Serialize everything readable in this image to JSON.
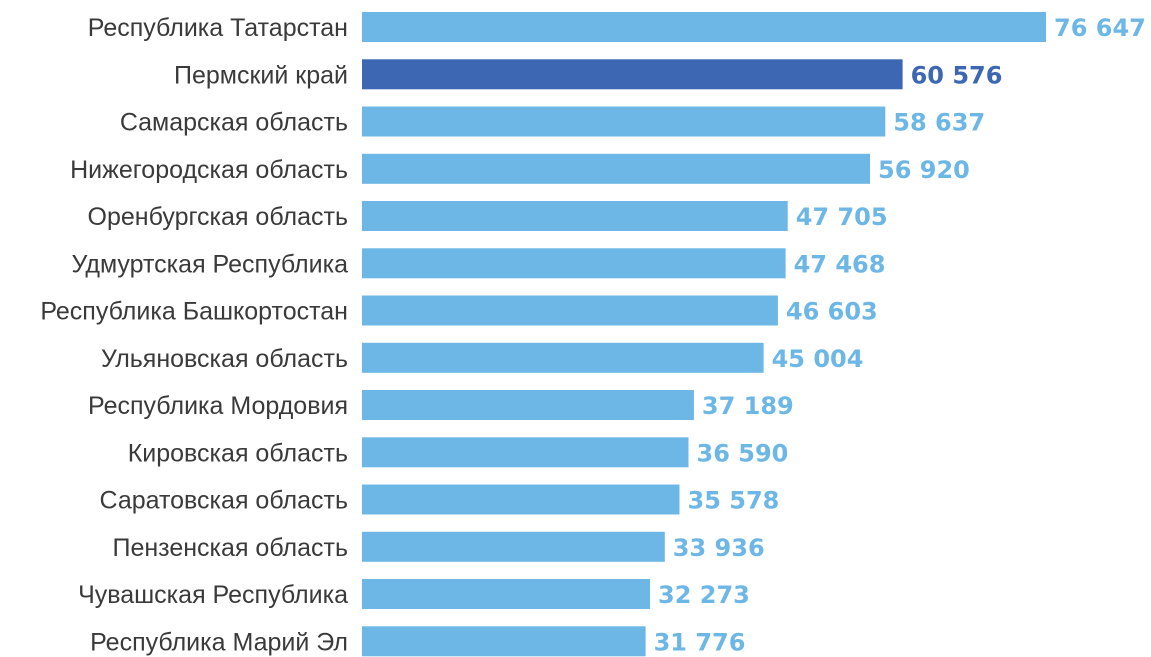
{
  "chart_data": {
    "type": "bar",
    "orientation": "horizontal",
    "title": "",
    "xlabel": "",
    "ylabel": "",
    "grid": false,
    "legend": "none",
    "number_format": "space-thousands",
    "colors": {
      "default": "#6cb7e6",
      "highlight": "#3d67b2"
    },
    "highlight_category": "Пермский край",
    "categories": [
      "Республика Татарстан",
      "Пермский край",
      "Самарская область",
      "Нижегородская область",
      "Оренбургская область",
      "Удмуртская Республика",
      "Республика Башкортостан",
      "Ульяновская область",
      "Республика Мордовия",
      "Кировская область",
      "Саратовская область",
      "Пензенская область",
      "Чувашская Республика",
      "Республика Марий Эл"
    ],
    "values": [
      76647,
      60576,
      58637,
      56920,
      47705,
      47468,
      46603,
      45004,
      37189,
      36590,
      35578,
      33936,
      32273,
      31776
    ],
    "value_labels": [
      "76 647",
      "60 576",
      "58 637",
      "56 920",
      "47 705",
      "47 468",
      "46 603",
      "45 004",
      "37 189",
      "36 590",
      "35 578",
      "33 936",
      "32 273",
      "31 776"
    ]
  }
}
